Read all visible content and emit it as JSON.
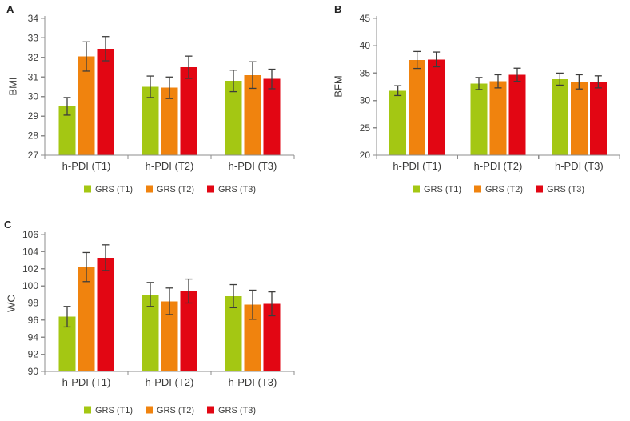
{
  "figure": {
    "background": "#ffffff",
    "axis_color": "#8c8c8c",
    "text_color": "#3c3c3b",
    "error_bar_color": "#3d3d3c",
    "series_colors": {
      "grs_t1": "#a4c713",
      "grs_t2": "#f0830e",
      "grs_t3": "#e20613"
    }
  },
  "chart_data": [
    {
      "panel": "A",
      "type": "bar",
      "title": "",
      "xlabel": "",
      "ylabel": "BMI",
      "ylim": [
        27,
        34
      ],
      "ytick_step": 1,
      "grid": false,
      "legend_position": "bottom",
      "categories": [
        "h-PDI (T1)",
        "h-PDI (T2)",
        "h-PDI (T3)"
      ],
      "series": [
        {
          "name": "GRS (T1)",
          "color": "#a4c713",
          "values": [
            29.5,
            30.5,
            30.8
          ],
          "errors": [
            0.45,
            0.55,
            0.55
          ]
        },
        {
          "name": "GRS (T2)",
          "color": "#f0830e",
          "values": [
            32.05,
            30.45,
            31.1
          ],
          "errors": [
            0.75,
            0.55,
            0.68
          ]
        },
        {
          "name": "GRS (T3)",
          "color": "#e20613",
          "values": [
            32.45,
            31.5,
            30.9
          ],
          "errors": [
            0.62,
            0.57,
            0.5
          ]
        }
      ]
    },
    {
      "panel": "B",
      "type": "bar",
      "title": "",
      "xlabel": "",
      "ylabel": "BFM",
      "ylim": [
        20,
        45
      ],
      "ytick_step": 5,
      "grid": false,
      "legend_position": "bottom",
      "categories": [
        "h-PDI (T1)",
        "h-PDI (T2)",
        "h-PDI (T3)"
      ],
      "series": [
        {
          "name": "GRS (T1)",
          "color": "#a4c713",
          "values": [
            31.8,
            33.1,
            33.9
          ],
          "errors": [
            0.9,
            1.1,
            1.1
          ]
        },
        {
          "name": "GRS (T2)",
          "color": "#f0830e",
          "values": [
            37.4,
            33.5,
            33.4
          ],
          "errors": [
            1.55,
            1.2,
            1.3
          ]
        },
        {
          "name": "GRS (T3)",
          "color": "#e20613",
          "values": [
            37.5,
            34.7,
            33.4
          ],
          "errors": [
            1.35,
            1.2,
            1.1
          ]
        }
      ]
    },
    {
      "panel": "C",
      "type": "bar",
      "title": "",
      "xlabel": "",
      "ylabel": "WC",
      "ylim": [
        90,
        106
      ],
      "ytick_step": 2,
      "grid": false,
      "legend_position": "bottom",
      "categories": [
        "h-PDI (T1)",
        "h-PDI (T2)",
        "h-PDI (T3)"
      ],
      "series": [
        {
          "name": "GRS (T1)",
          "color": "#a4c713",
          "values": [
            96.4,
            99.0,
            98.8
          ],
          "errors": [
            1.2,
            1.4,
            1.35
          ]
        },
        {
          "name": "GRS (T2)",
          "color": "#f0830e",
          "values": [
            102.2,
            98.2,
            97.8
          ],
          "errors": [
            1.7,
            1.55,
            1.7
          ]
        },
        {
          "name": "GRS (T3)",
          "color": "#e20613",
          "values": [
            103.3,
            99.4,
            97.9
          ],
          "errors": [
            1.5,
            1.4,
            1.4
          ]
        }
      ]
    }
  ]
}
